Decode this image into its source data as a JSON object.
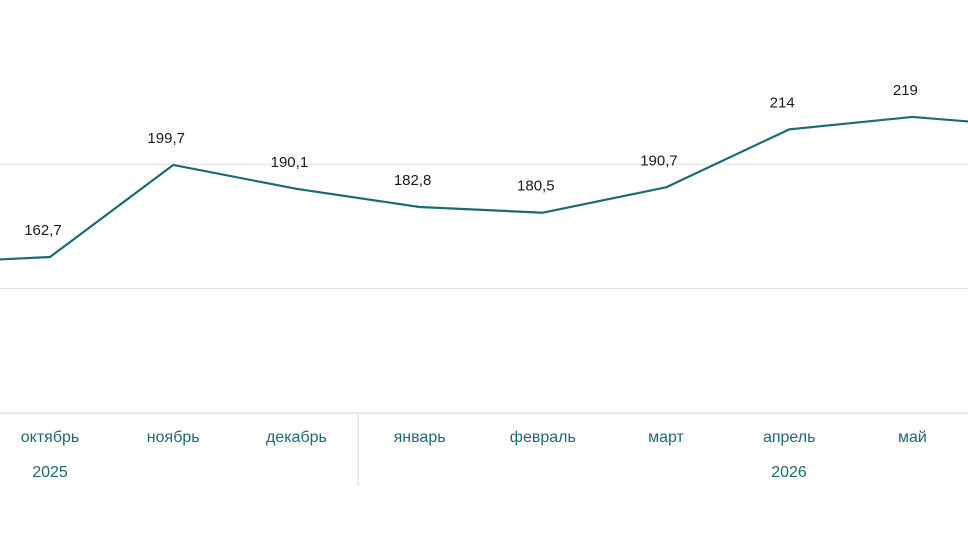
{
  "chart_data": {
    "type": "line",
    "categories": [
      null,
      "октябрь",
      "ноябрь",
      "декабрь",
      "январь",
      "февраль",
      "март",
      "апрель",
      "май",
      null
    ],
    "series": [
      {
        "color": "#1b6b75",
        "values": [
          160.3,
          162.7,
          199.7,
          190.1,
          182.8,
          180.5,
          190.7,
          214,
          219,
          215
        ],
        "value_labels": [
          null,
          "162,7",
          "199,7",
          "190,1",
          "182,8",
          "180,5",
          "190,7",
          "214",
          "219",
          null
        ]
      }
    ],
    "ylim": [
      100,
      266
    ],
    "yticks": [
      150,
      200
    ],
    "grid": true,
    "years": [
      "2025",
      "2026"
    ]
  }
}
